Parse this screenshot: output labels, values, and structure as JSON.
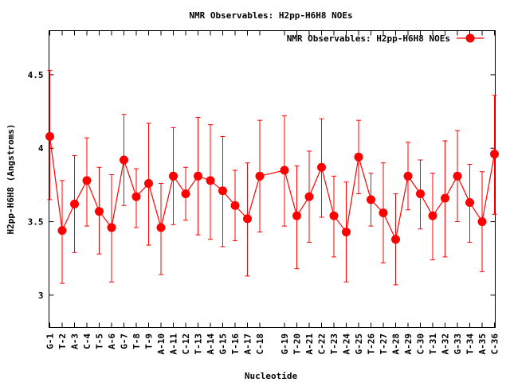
{
  "chart_data": {
    "type": "line",
    "title": "NMR Observables: H2pp-H6H8 NOEs",
    "xlabel": "Nucleotide",
    "ylabel": "H2pp-H6H8 (Angstroms)",
    "ylim": [
      2.78,
      4.8
    ],
    "yticks": [
      "3",
      "3.5",
      "4",
      "4.5"
    ],
    "grid": false,
    "legend_position": "top-right",
    "color": "#ff0000",
    "series": [
      {
        "name": "NMR Observables: H2pp-H6H8 NOEs",
        "points": [
          {
            "x": "G-1",
            "y": 4.08,
            "lo": 3.65,
            "hi": 4.53
          },
          {
            "x": "T-2",
            "y": 3.44,
            "lo": 3.08,
            "hi": 3.78
          },
          {
            "x": "A-3",
            "y": 3.62,
            "lo": 3.29,
            "hi": 3.95
          },
          {
            "x": "C-4",
            "y": 3.78,
            "lo": 3.47,
            "hi": 4.07
          },
          {
            "x": "T-5",
            "y": 3.57,
            "lo": 3.28,
            "hi": 3.87
          },
          {
            "x": "A-6",
            "y": 3.46,
            "lo": 3.09,
            "hi": 3.82
          },
          {
            "x": "G-7",
            "y": 3.92,
            "lo": 3.61,
            "hi": 4.23
          },
          {
            "x": "T-8",
            "y": 3.67,
            "lo": 3.46,
            "hi": 3.86
          },
          {
            "x": "T-9",
            "y": 3.76,
            "lo": 3.34,
            "hi": 4.17
          },
          {
            "x": "A-10",
            "y": 3.46,
            "lo": 3.14,
            "hi": 3.76
          },
          {
            "x": "A-11",
            "y": 3.81,
            "lo": 3.48,
            "hi": 4.14
          },
          {
            "x": "C-12",
            "y": 3.69,
            "lo": 3.51,
            "hi": 3.87
          },
          {
            "x": "T-13",
            "y": 3.81,
            "lo": 3.41,
            "hi": 4.21
          },
          {
            "x": "A-14",
            "y": 3.78,
            "lo": 3.38,
            "hi": 4.16
          },
          {
            "x": "G-15",
            "y": 3.71,
            "lo": 3.33,
            "hi": 4.08
          },
          {
            "x": "T-16",
            "y": 3.61,
            "lo": 3.37,
            "hi": 3.85
          },
          {
            "x": "A-17",
            "y": 3.52,
            "lo": 3.13,
            "hi": 3.9
          },
          {
            "x": "C-18",
            "y": 3.81,
            "lo": 3.43,
            "hi": 4.19
          },
          {
            "x": "G-19",
            "y": 3.85,
            "lo": 3.47,
            "hi": 4.22
          },
          {
            "x": "T-20",
            "y": 3.54,
            "lo": 3.18,
            "hi": 3.88
          },
          {
            "x": "A-21",
            "y": 3.67,
            "lo": 3.36,
            "hi": 3.98
          },
          {
            "x": "C-22",
            "y": 3.87,
            "lo": 3.53,
            "hi": 4.2
          },
          {
            "x": "T-23",
            "y": 3.54,
            "lo": 3.26,
            "hi": 3.81
          },
          {
            "x": "A-24",
            "y": 3.43,
            "lo": 3.09,
            "hi": 3.77
          },
          {
            "x": "G-25",
            "y": 3.94,
            "lo": 3.69,
            "hi": 4.19
          },
          {
            "x": "T-26",
            "y": 3.65,
            "lo": 3.47,
            "hi": 3.83
          },
          {
            "x": "T-27",
            "y": 3.56,
            "lo": 3.22,
            "hi": 3.9
          },
          {
            "x": "A-28",
            "y": 3.38,
            "lo": 3.07,
            "hi": 3.69
          },
          {
            "x": "A-29",
            "y": 3.81,
            "lo": 3.58,
            "hi": 4.04
          },
          {
            "x": "C-30",
            "y": 3.69,
            "lo": 3.45,
            "hi": 3.92
          },
          {
            "x": "T-31",
            "y": 3.54,
            "lo": 3.24,
            "hi": 3.83
          },
          {
            "x": "A-32",
            "y": 3.66,
            "lo": 3.26,
            "hi": 4.05
          },
          {
            "x": "G-33",
            "y": 3.81,
            "lo": 3.5,
            "hi": 4.12
          },
          {
            "x": "T-34",
            "y": 3.63,
            "lo": 3.36,
            "hi": 3.89
          },
          {
            "x": "A-35",
            "y": 3.5,
            "lo": 3.16,
            "hi": 3.84
          },
          {
            "x": "C-36",
            "y": 3.96,
            "lo": 3.55,
            "hi": 4.36
          }
        ]
      }
    ]
  }
}
